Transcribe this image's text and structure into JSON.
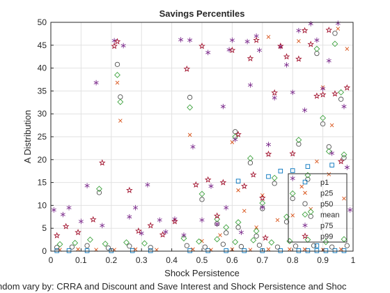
{
  "chart_data": {
    "type": "scatter",
    "title": "Savings Percentiles",
    "xlabel": "Shock Persistence",
    "ylabel": "A Distribution",
    "footer": "ndom vary by: CRRA and Discount and Save Interest and Shock Persistence and Shoc",
    "xlim": [
      0,
      1
    ],
    "ylim": [
      0,
      50
    ],
    "x_ticks": [
      "0",
      "0.1",
      "0.2",
      "0.3",
      "0.4",
      "0.5",
      "0.6",
      "0.7",
      "0.8",
      "0.9",
      "1"
    ],
    "y_ticks": [
      "0",
      "5",
      "10",
      "15",
      "20",
      "25",
      "30",
      "35",
      "40",
      "45",
      "50"
    ],
    "grid": true,
    "legend_position": "lower-right",
    "series": [
      {
        "name": "p1",
        "marker": "square",
        "color": "#0072BD",
        "points": [
          [
            0.02,
            0.1
          ],
          [
            0.06,
            0.1
          ],
          [
            0.12,
            0.1
          ],
          [
            0.2,
            0.1
          ],
          [
            0.27,
            0.1
          ],
          [
            0.33,
            0.1
          ],
          [
            0.46,
            0.1
          ],
          [
            0.52,
            0.1
          ],
          [
            0.58,
            0.1
          ],
          [
            0.64,
            0.1
          ],
          [
            0.7,
            0.1
          ],
          [
            0.76,
            0.1
          ],
          [
            0.82,
            0.1
          ],
          [
            0.85,
            0.1
          ],
          [
            0.88,
            0.1
          ],
          [
            0.91,
            0.1
          ],
          [
            0.94,
            0.1
          ],
          [
            0.97,
            0.1
          ],
          [
            0.8,
            17.6
          ],
          [
            0.85,
            18.5
          ],
          [
            0.72,
            16.3
          ],
          [
            0.76,
            17.5
          ],
          [
            0.93,
            18.8
          ],
          [
            0.62,
            15.3
          ],
          [
            0.88,
            1.2
          ]
        ]
      },
      {
        "name": "p25",
        "marker": "x",
        "color": "#D95319",
        "points": [
          [
            0.03,
            0.3
          ],
          [
            0.09,
            0.4
          ],
          [
            0.15,
            0.3
          ],
          [
            0.21,
            0.3
          ],
          [
            0.28,
            0.4
          ],
          [
            0.35,
            0.3
          ],
          [
            0.47,
            0.4
          ],
          [
            0.53,
            0.3
          ],
          [
            0.6,
            0.4
          ],
          [
            0.66,
            0.3
          ],
          [
            0.72,
            0.4
          ],
          [
            0.79,
            0.4
          ],
          [
            0.84,
            0.4
          ],
          [
            0.9,
            0.3
          ],
          [
            0.96,
            0.4
          ],
          [
            0.22,
            36.8
          ],
          [
            0.23,
            28.5
          ],
          [
            0.46,
            25.4
          ],
          [
            0.62,
            13.3
          ],
          [
            0.7,
            12.2
          ],
          [
            0.83,
            14.1
          ],
          [
            0.88,
            19.6
          ],
          [
            0.92,
            16.8
          ],
          [
            0.97,
            11.5
          ],
          [
            0.86,
            9.2
          ],
          [
            0.8,
            7.8
          ],
          [
            0.75,
            6.8
          ],
          [
            0.68,
            5.2
          ],
          [
            0.56,
            3.5
          ],
          [
            0.64,
            8.8
          ],
          [
            0.9,
            35.8
          ],
          [
            0.95,
            48.6
          ],
          [
            0.82,
            45.9
          ],
          [
            0.72,
            46.8
          ],
          [
            0.6,
            23.8
          ],
          [
            0.5,
            2.2
          ],
          [
            0.93,
            27.5
          ],
          [
            0.98,
            44.2
          ]
        ]
      },
      {
        "name": "p50",
        "marker": "circle",
        "color": "#505050",
        "points": [
          [
            0.02,
            0.8
          ],
          [
            0.07,
            0.9
          ],
          [
            0.12,
            1.2
          ],
          [
            0.19,
            0.7
          ],
          [
            0.26,
            1.1
          ],
          [
            0.33,
            0.8
          ],
          [
            0.45,
            1.2
          ],
          [
            0.51,
            0.9
          ],
          [
            0.57,
            1.5
          ],
          [
            0.63,
            1.0
          ],
          [
            0.69,
            1.3
          ],
          [
            0.75,
            0.9
          ],
          [
            0.81,
            1.1
          ],
          [
            0.87,
            1.2
          ],
          [
            0.93,
            0.9
          ],
          [
            0.98,
            1.2
          ],
          [
            0.22,
            40.8
          ],
          [
            0.23,
            33.7
          ],
          [
            0.16,
            12.8
          ],
          [
            0.46,
            33.6
          ],
          [
            0.5,
            11.3
          ],
          [
            0.61,
            26.1
          ],
          [
            0.66,
            19.3
          ],
          [
            0.74,
            14.8
          ],
          [
            0.8,
            11.5
          ],
          [
            0.85,
            15.7
          ],
          [
            0.9,
            27.8
          ],
          [
            0.94,
            47.6
          ],
          [
            0.96,
            33.2
          ],
          [
            0.88,
            43.2
          ],
          [
            0.82,
            23.4
          ],
          [
            0.7,
            9.3
          ],
          [
            0.55,
            6.0
          ],
          [
            0.62,
            5.2
          ],
          [
            0.78,
            6.4
          ],
          [
            0.86,
            7.6
          ],
          [
            0.92,
            22.8
          ],
          [
            0.97,
            20.4
          ],
          [
            0.68,
            3.3
          ],
          [
            0.58,
            4.0
          ]
        ]
      },
      {
        "name": "mean",
        "marker": "diamond",
        "color": "#3FA33F",
        "points": [
          [
            0.03,
            1.5
          ],
          [
            0.08,
            1.8
          ],
          [
            0.13,
            2.5
          ],
          [
            0.18,
            1.6
          ],
          [
            0.25,
            1.9
          ],
          [
            0.31,
            1.7
          ],
          [
            0.44,
            2.8
          ],
          [
            0.49,
            2.1
          ],
          [
            0.55,
            2.6
          ],
          [
            0.61,
            2.0
          ],
          [
            0.67,
            2.4
          ],
          [
            0.73,
            1.9
          ],
          [
            0.79,
            2.2
          ],
          [
            0.85,
            2.5
          ],
          [
            0.91,
            2.0
          ],
          [
            0.97,
            2.6
          ],
          [
            0.22,
            38.5
          ],
          [
            0.23,
            32.6
          ],
          [
            0.16,
            13.6
          ],
          [
            0.46,
            31.4
          ],
          [
            0.5,
            12.5
          ],
          [
            0.61,
            25.0
          ],
          [
            0.66,
            20.3
          ],
          [
            0.74,
            16.0
          ],
          [
            0.8,
            12.6
          ],
          [
            0.85,
            16.6
          ],
          [
            0.9,
            29.1
          ],
          [
            0.94,
            45.3
          ],
          [
            0.96,
            34.7
          ],
          [
            0.88,
            44.2
          ],
          [
            0.82,
            24.3
          ],
          [
            0.7,
            10.5
          ],
          [
            0.55,
            7.0
          ],
          [
            0.62,
            6.3
          ],
          [
            0.78,
            7.5
          ],
          [
            0.86,
            8.6
          ],
          [
            0.92,
            21.8
          ],
          [
            0.97,
            21.1
          ],
          [
            0.68,
            4.4
          ],
          [
            0.58,
            5.2
          ]
        ]
      },
      {
        "name": "p75",
        "marker": "star6",
        "color": "#7E2F8E",
        "points": [
          [
            0.01,
            9.0
          ],
          [
            0.04,
            8.0
          ],
          [
            0.06,
            9.5
          ],
          [
            0.1,
            6.5
          ],
          [
            0.12,
            14.3
          ],
          [
            0.15,
            36.8
          ],
          [
            0.17,
            5.6
          ],
          [
            0.21,
            46.0
          ],
          [
            0.24,
            44.9
          ],
          [
            0.26,
            7.5
          ],
          [
            0.28,
            9.5
          ],
          [
            0.3,
            3.9
          ],
          [
            0.32,
            14.5
          ],
          [
            0.36,
            6.8
          ],
          [
            0.38,
            4.2
          ],
          [
            0.41,
            7.0
          ],
          [
            0.44,
            3.5
          ],
          [
            0.46,
            46.1
          ],
          [
            0.47,
            22.8
          ],
          [
            0.5,
            6.8
          ],
          [
            0.52,
            43.4
          ],
          [
            0.53,
            14.2
          ],
          [
            0.55,
            5.9
          ],
          [
            0.57,
            31.6
          ],
          [
            0.58,
            9.5
          ],
          [
            0.6,
            46.1
          ],
          [
            0.61,
            24.4
          ],
          [
            0.63,
            4.1
          ],
          [
            0.65,
            45.8
          ],
          [
            0.66,
            36.3
          ],
          [
            0.68,
            47.0
          ],
          [
            0.7,
            9.6
          ],
          [
            0.72,
            23.3
          ],
          [
            0.74,
            33.5
          ],
          [
            0.76,
            44.7
          ],
          [
            0.78,
            40.7
          ],
          [
            0.8,
            15.9
          ],
          [
            0.82,
            48.2
          ],
          [
            0.84,
            30.8
          ],
          [
            0.86,
            49.7
          ],
          [
            0.88,
            46.1
          ],
          [
            0.9,
            35.5
          ],
          [
            0.92,
            41.6
          ],
          [
            0.93,
            21.4
          ],
          [
            0.95,
            49.8
          ],
          [
            0.97,
            31.6
          ],
          [
            0.98,
            18.3
          ],
          [
            0.99,
            9.0
          ],
          [
            0.69,
            43.9
          ],
          [
            0.59,
            44.0
          ],
          [
            0.43,
            46.2
          ],
          [
            0.8,
            34.7
          ]
        ]
      },
      {
        "name": "p99",
        "marker": "star5",
        "color": "#A2142F",
        "points": [
          [
            0.02,
            3.4
          ],
          [
            0.05,
            5.4
          ],
          [
            0.09,
            4.1
          ],
          [
            0.14,
            6.9
          ],
          [
            0.17,
            19.3
          ],
          [
            0.21,
            44.8
          ],
          [
            0.22,
            45.8
          ],
          [
            0.26,
            13.3
          ],
          [
            0.29,
            4.4
          ],
          [
            0.33,
            5.6
          ],
          [
            0.37,
            3.6
          ],
          [
            0.41,
            6.5
          ],
          [
            0.45,
            39.8
          ],
          [
            0.48,
            14.5
          ],
          [
            0.5,
            44.8
          ],
          [
            0.52,
            15.6
          ],
          [
            0.55,
            7.7
          ],
          [
            0.57,
            15.0
          ],
          [
            0.6,
            43.9
          ],
          [
            0.62,
            25.5
          ],
          [
            0.64,
            14.2
          ],
          [
            0.66,
            42.1
          ],
          [
            0.68,
            46.1
          ],
          [
            0.7,
            11.6
          ],
          [
            0.72,
            21.2
          ],
          [
            0.74,
            34.6
          ],
          [
            0.76,
            44.8
          ],
          [
            0.78,
            42.5
          ],
          [
            0.8,
            21.3
          ],
          [
            0.82,
            42.0
          ],
          [
            0.84,
            48.2
          ],
          [
            0.86,
            45.2
          ],
          [
            0.88,
            33.9
          ],
          [
            0.9,
            34.2
          ],
          [
            0.92,
            48.3
          ],
          [
            0.94,
            34.4
          ],
          [
            0.96,
            19.6
          ],
          [
            0.98,
            35.7
          ],
          [
            0.67,
            16.7
          ],
          [
            0.71,
            2.9
          ]
        ]
      }
    ]
  }
}
